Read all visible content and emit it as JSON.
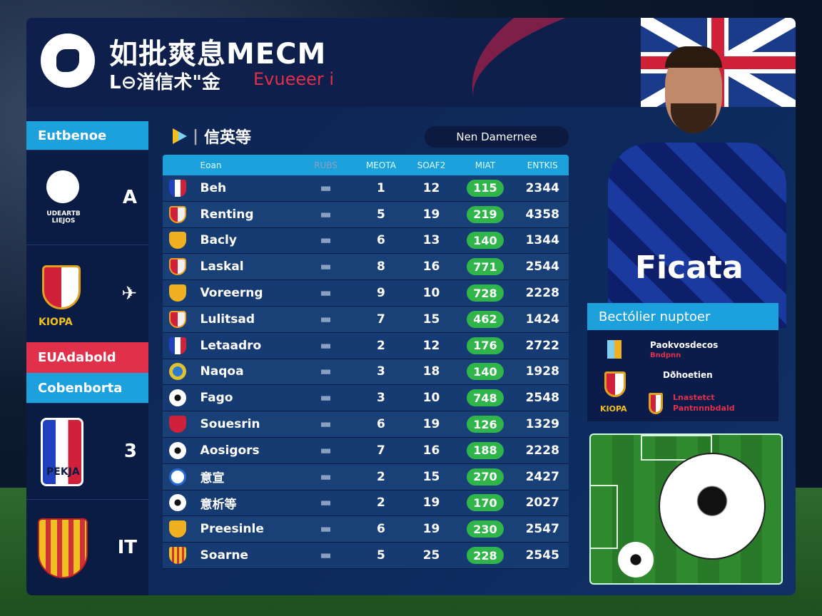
{
  "header": {
    "title": "如批爽息MECM",
    "subtitle": "L⊖渞信术\"金",
    "subtitle_accent": "Evueeer i"
  },
  "sidebar": {
    "tab_top": "Eutbenoe",
    "blocks": [
      {
        "crest_label": "UDEARTB LIEJOS",
        "letter": "A"
      },
      {
        "crest_label": "KIOPA",
        "letter": "✈"
      }
    ],
    "tab_red": "EUAdabold",
    "tab_blue": "Cobenborta",
    "blocks2": [
      {
        "crest_label": "PEKJA",
        "letter": "3"
      },
      {
        "crest_label": "",
        "letter": "IT"
      }
    ]
  },
  "section": {
    "title": "信英等",
    "pill": "Nen Damernee"
  },
  "table": {
    "headers": [
      "Eoan",
      "RUBS",
      "MEOTA",
      "SOAF2",
      "MIAT",
      "ENTKIS"
    ],
    "rows": [
      {
        "icon": "flag-fr",
        "name": "Beh",
        "a": "1",
        "b": "12",
        "c": "115",
        "d": "2344"
      },
      {
        "icon": "shield",
        "name": "Renting",
        "a": "5",
        "b": "19",
        "c": "219",
        "d": "4358"
      },
      {
        "icon": "yellow-shield",
        "name": "Bacly",
        "a": "6",
        "b": "13",
        "c": "140",
        "d": "1344"
      },
      {
        "icon": "shield",
        "name": "Laskal",
        "a": "8",
        "b": "16",
        "c": "771",
        "d": "2544"
      },
      {
        "icon": "yellow-shield",
        "name": "Voreerng",
        "a": "9",
        "b": "10",
        "c": "728",
        "d": "2228"
      },
      {
        "icon": "shield",
        "name": "Lulitsad",
        "a": "7",
        "b": "15",
        "c": "462",
        "d": "1424"
      },
      {
        "icon": "flag-fr",
        "name": "Letaadro",
        "a": "2",
        "b": "12",
        "c": "176",
        "d": "2722"
      },
      {
        "icon": "globe",
        "name": "Naqoa",
        "a": "3",
        "b": "18",
        "c": "140",
        "d": "1928"
      },
      {
        "icon": "ball",
        "name": "Fago",
        "a": "3",
        "b": "10",
        "c": "748",
        "d": "2548"
      },
      {
        "icon": "red-shield",
        "name": "Souesrin",
        "a": "6",
        "b": "19",
        "c": "126",
        "d": "1329"
      },
      {
        "icon": "ball",
        "name": "Aosigors",
        "a": "7",
        "b": "16",
        "c": "188",
        "d": "2228"
      },
      {
        "icon": "blue-crest",
        "name": "意宣",
        "a": "2",
        "b": "15",
        "c": "270",
        "d": "2427"
      },
      {
        "icon": "ball",
        "name": "意析等",
        "a": "2",
        "b": "19",
        "c": "170",
        "d": "2027"
      },
      {
        "icon": "yellow-shield",
        "name": "Preesinle",
        "a": "6",
        "b": "19",
        "c": "230",
        "d": "2547"
      },
      {
        "icon": "stripes",
        "name": "Soarne",
        "a": "5",
        "b": "25",
        "c": "228",
        "d": "2545"
      }
    ]
  },
  "player": {
    "jersey_text": "Ficata"
  },
  "info": {
    "title": "Bectólier nuptoer",
    "line1": "Paokvosdecos",
    "line1_sub": "Bndpnn",
    "line2": "Dðhoetien",
    "crest_label": "KIOPA",
    "line3": "Lnastetct",
    "line3_sub": "Pantnnnbdald"
  },
  "colors": {
    "accent": "#1da1dc",
    "badge": "#2fb54a",
    "red": "#e0304a",
    "panel": "#0f2350"
  }
}
